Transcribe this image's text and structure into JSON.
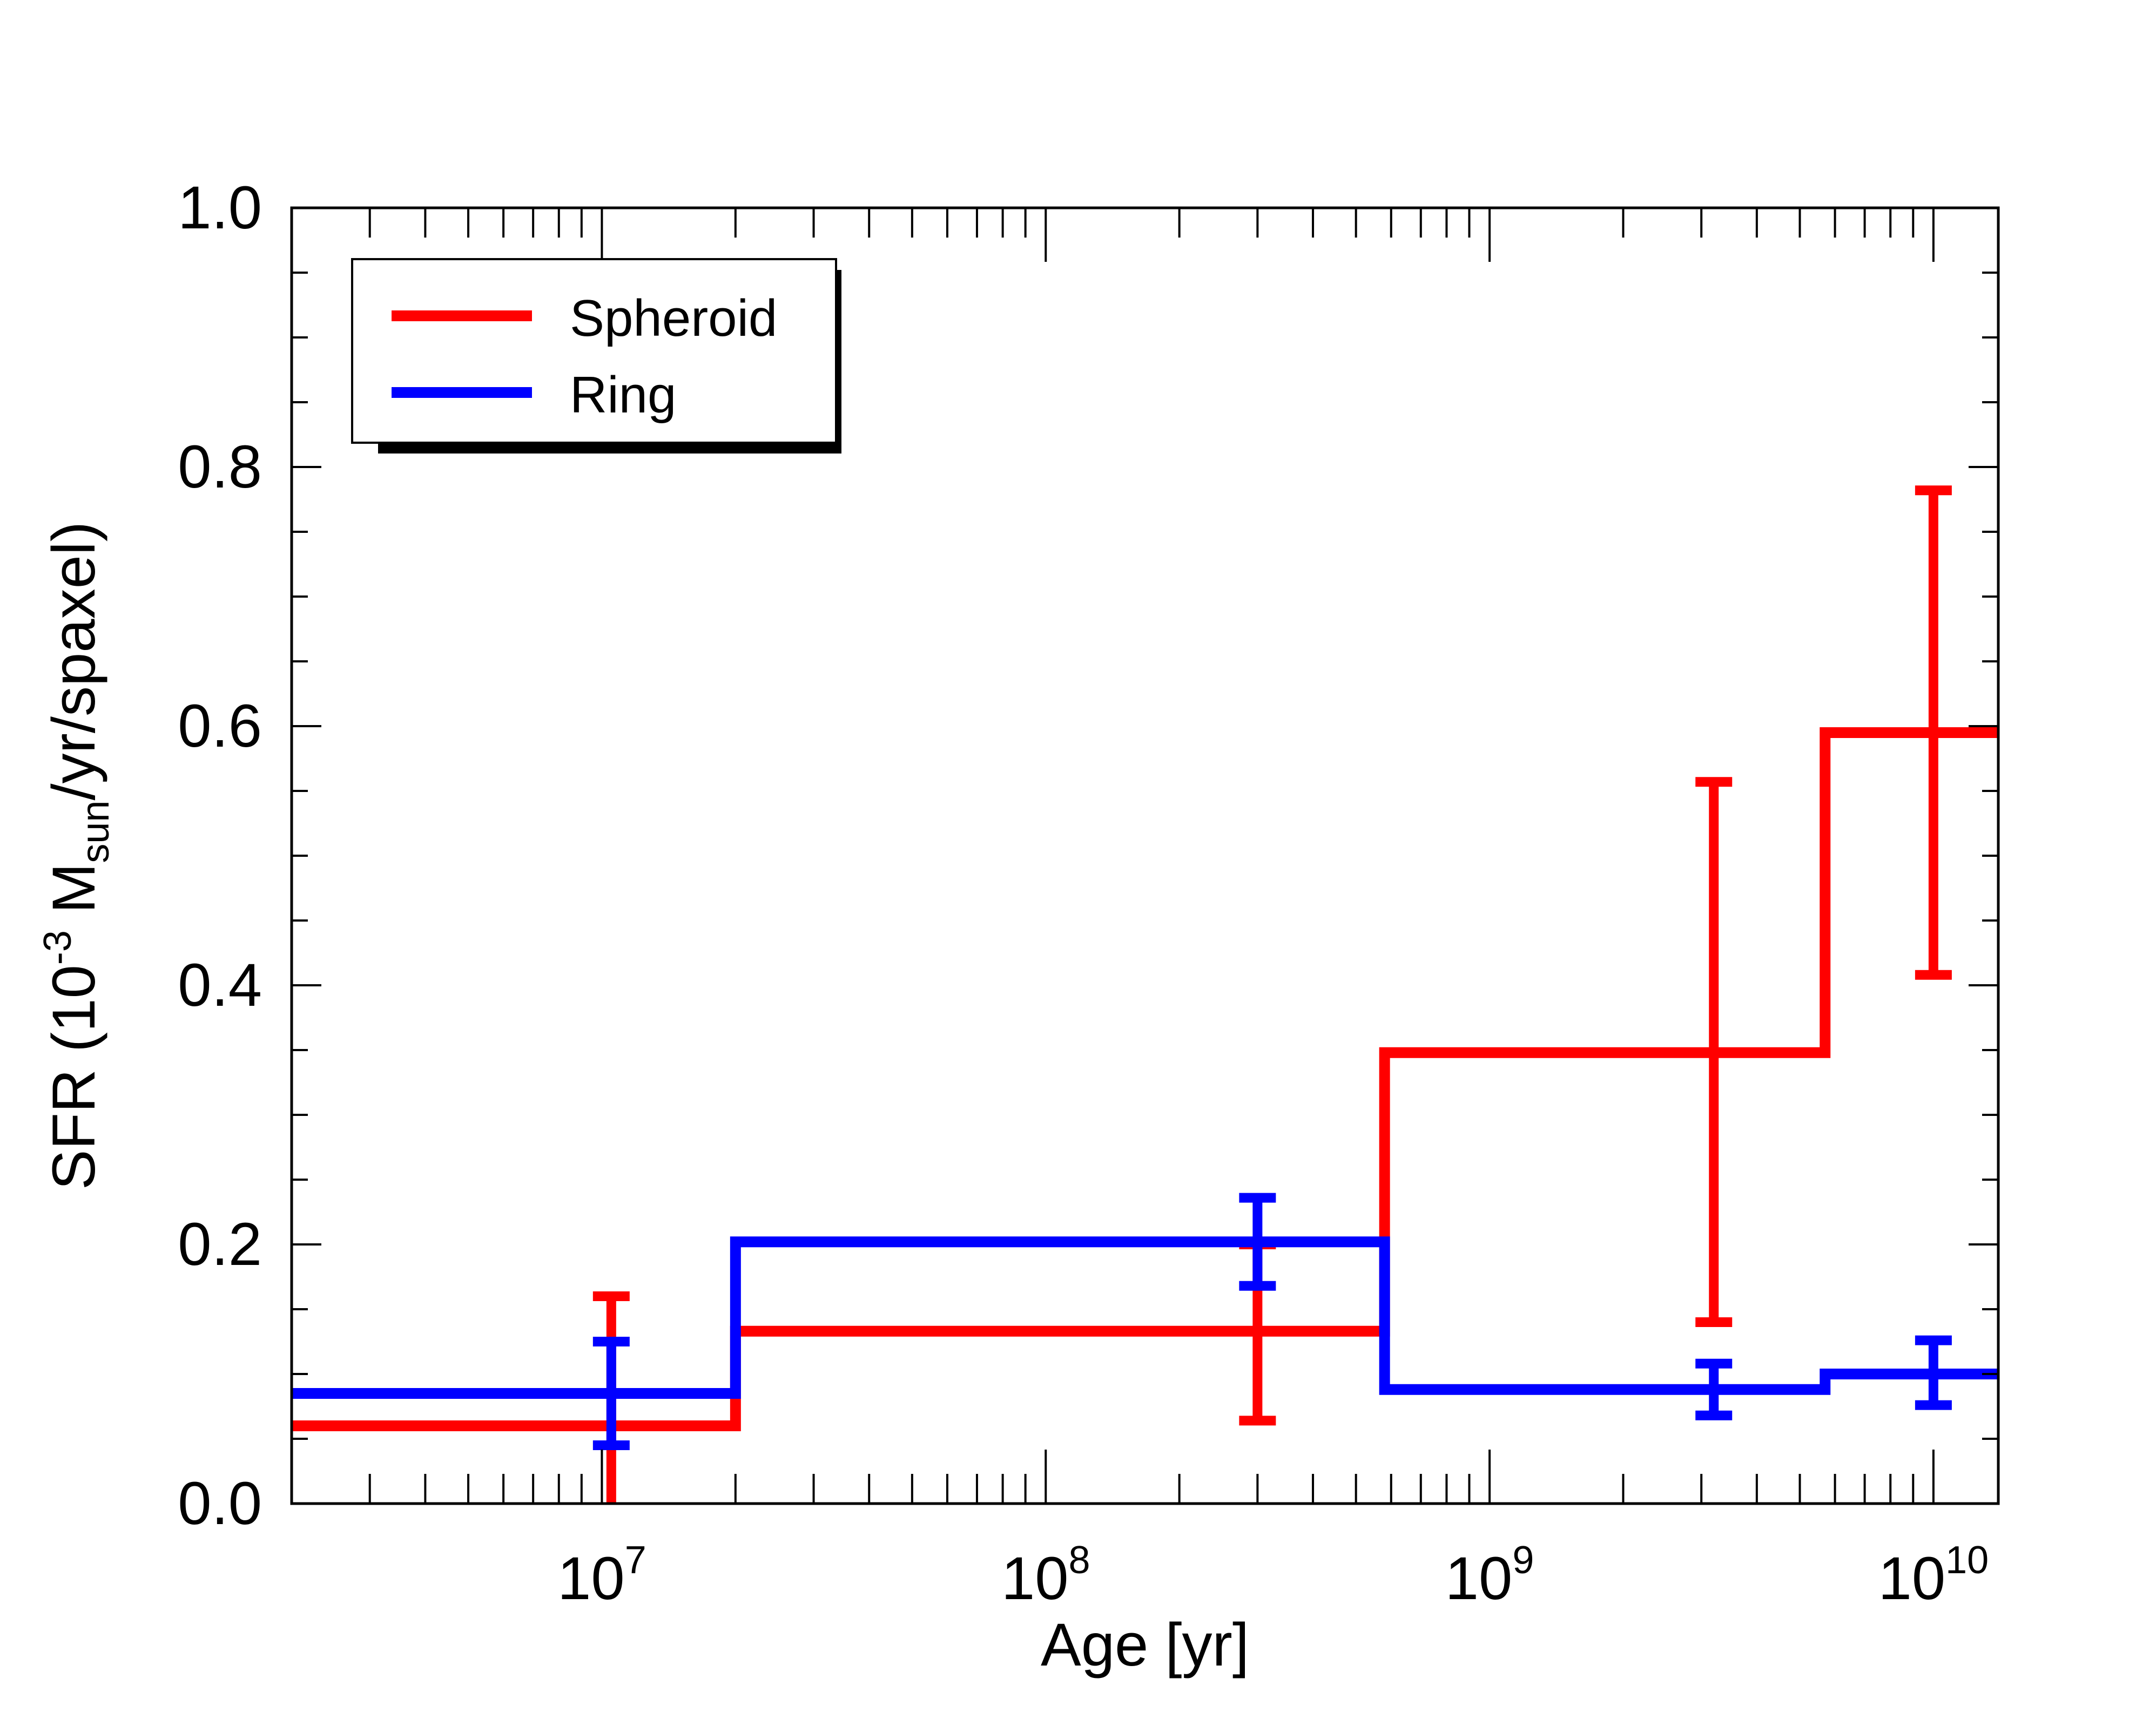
{
  "chart_data": {
    "type": "line",
    "subtype": "step",
    "title": "",
    "xlabel": "Age [yr]",
    "ylabel": {
      "prefix": "SFR (10",
      "exp": "-3",
      "mid": " M",
      "sub": "sun",
      "suffix": "/yr/spaxel)"
    },
    "xscale": "log",
    "xlim": [
      2000000,
      14000000000
    ],
    "ylim": [
      0.0,
      1.0
    ],
    "x_ticks": [
      {
        "value": 10000000,
        "base": "10",
        "exp": "7"
      },
      {
        "value": 100000000,
        "base": "10",
        "exp": "8"
      },
      {
        "value": 1000000000,
        "base": "10",
        "exp": "9"
      },
      {
        "value": 10000000000,
        "base": "10",
        "exp": "10"
      }
    ],
    "y_ticks": [
      {
        "value": 0.0,
        "label": "0.0"
      },
      {
        "value": 0.2,
        "label": "0.2"
      },
      {
        "value": 0.4,
        "label": "0.4"
      },
      {
        "value": 0.6,
        "label": "0.6"
      },
      {
        "value": 0.8,
        "label": "0.8"
      },
      {
        "value": 1.0,
        "label": "1.0"
      }
    ],
    "y_minor_step": 0.05,
    "legend_position": "top-left",
    "series": [
      {
        "name": "Spheroid",
        "color": "#ff0000",
        "bins": [
          {
            "x0": 2000000,
            "x1": 20000000,
            "y": 0.06
          },
          {
            "x0": 20000000,
            "x1": 580000000,
            "y": 0.133
          },
          {
            "x0": 580000000,
            "x1": 5700000000,
            "y": 0.348
          },
          {
            "x0": 5700000000,
            "x1": 14000000000,
            "y": 0.595
          }
        ],
        "errorbars": [
          {
            "x": 10500000,
            "y": 0.06,
            "low": 0.0,
            "high": 0.16
          },
          {
            "x": 300000000,
            "y": 0.133,
            "low": 0.064,
            "high": 0.2
          },
          {
            "x": 3200000000,
            "y": 0.348,
            "low": 0.14,
            "high": 0.557
          },
          {
            "x": 10000000000,
            "y": 0.595,
            "low": 0.408,
            "high": 0.782
          }
        ]
      },
      {
        "name": "Ring",
        "color": "#0000ff",
        "bins": [
          {
            "x0": 2000000,
            "x1": 20000000,
            "y": 0.085
          },
          {
            "x0": 20000000,
            "x1": 580000000,
            "y": 0.202
          },
          {
            "x0": 580000000,
            "x1": 5700000000,
            "y": 0.088
          },
          {
            "x0": 5700000000,
            "x1": 14000000000,
            "y": 0.1
          }
        ],
        "errorbars": [
          {
            "x": 10500000,
            "y": 0.085,
            "low": 0.045,
            "high": 0.125
          },
          {
            "x": 300000000,
            "y": 0.202,
            "low": 0.168,
            "high": 0.236
          },
          {
            "x": 3200000000,
            "y": 0.088,
            "low": 0.068,
            "high": 0.108
          },
          {
            "x": 10000000000,
            "y": 0.1,
            "low": 0.076,
            "high": 0.126
          }
        ]
      }
    ]
  }
}
